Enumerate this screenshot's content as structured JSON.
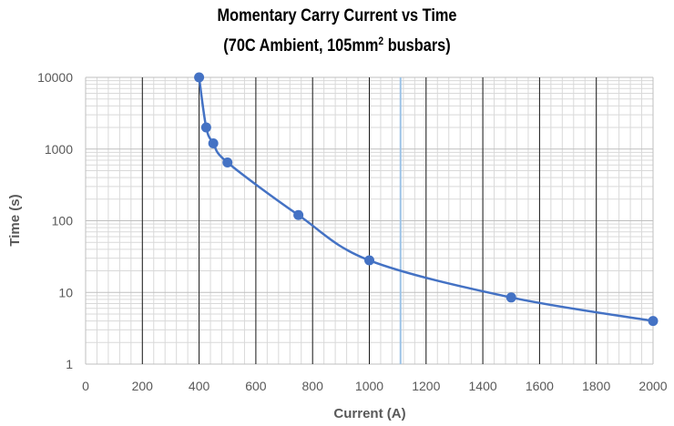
{
  "chart_data": {
    "type": "line",
    "title": "Momentary Carry Current vs Time",
    "subtitle_prefix": "(70C Ambient, 105mm",
    "subtitle_sup": "2",
    "subtitle_suffix": " busbars)",
    "xlabel": "Current (A)",
    "ylabel": "Time (s)",
    "xlim": [
      0,
      2000
    ],
    "ylim": [
      1,
      10000
    ],
    "yscale": "log",
    "x_ticks": [
      0,
      200,
      400,
      600,
      800,
      1000,
      1200,
      1400,
      1600,
      1800,
      2000
    ],
    "x_tick_labels": [
      "0",
      "200",
      "400",
      "600",
      "800",
      "1000",
      "1200",
      "1400",
      "1600",
      "1800",
      "2000"
    ],
    "y_ticks": [
      1,
      10,
      100,
      1000,
      10000
    ],
    "y_tick_labels": [
      "1",
      "10",
      "100",
      "1000",
      "10000"
    ],
    "grid": true,
    "vertical_marker_x": 1110,
    "series": [
      {
        "name": "Momentary Carry Current",
        "color": "#4472c4",
        "x": [
          400,
          425,
          450,
          500,
          750,
          1000,
          1500,
          2000
        ],
        "y": [
          10000,
          2000,
          1200,
          650,
          120,
          28,
          8.5,
          4
        ]
      }
    ]
  }
}
